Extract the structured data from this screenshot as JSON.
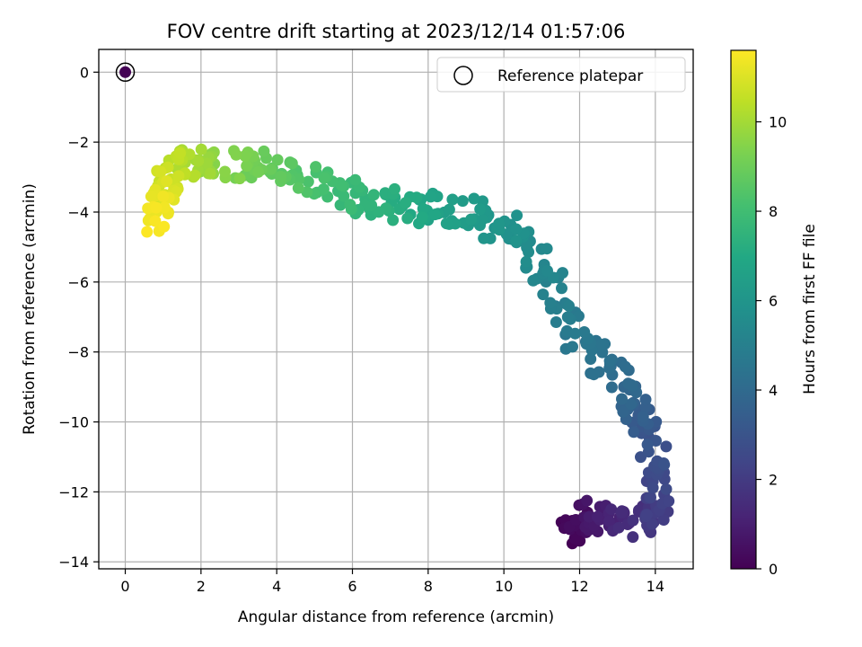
{
  "chart_data": {
    "type": "scatter",
    "title": "FOV centre drift starting at 2023/12/14 01:57:06",
    "xlabel": "Angular distance from reference (arcmin)",
    "ylabel": "Rotation from reference (arcmin)",
    "xlim": [
      -0.7,
      15.0
    ],
    "ylim": [
      -14.2,
      0.65
    ],
    "xticks": [
      0,
      2,
      4,
      6,
      8,
      10,
      12,
      14
    ],
    "yticks": [
      0,
      -2,
      -4,
      -6,
      -8,
      -10,
      -12,
      -14
    ],
    "grid": true,
    "legend": {
      "location": "upper right",
      "entries": [
        "Reference platepar"
      ]
    },
    "colorbar": {
      "label": "Hours from first FF file",
      "colormap": "viridis",
      "range": [
        0,
        11.6
      ],
      "ticks": [
        0,
        2,
        4,
        6,
        8,
        10
      ]
    },
    "reference_point": {
      "x": 0,
      "y": 0,
      "hours": 0
    },
    "path_anchors": [
      {
        "hours": 0.0,
        "x": 11.7,
        "y": -13.3
      },
      {
        "hours": 0.6,
        "x": 12.1,
        "y": -12.6
      },
      {
        "hours": 1.2,
        "x": 13.0,
        "y": -12.9
      },
      {
        "hours": 2.0,
        "x": 14.0,
        "y": -12.8
      },
      {
        "hours": 2.6,
        "x": 14.1,
        "y": -11.5
      },
      {
        "hours": 3.3,
        "x": 13.7,
        "y": -10.1
      },
      {
        "hours": 4.0,
        "x": 13.2,
        "y": -8.9
      },
      {
        "hours": 4.6,
        "x": 11.9,
        "y": -7.6
      },
      {
        "hours": 5.2,
        "x": 11.3,
        "y": -5.8
      },
      {
        "hours": 5.8,
        "x": 10.2,
        "y": -4.6
      },
      {
        "hours": 6.3,
        "x": 9.0,
        "y": -3.9
      },
      {
        "hours": 7.0,
        "x": 7.6,
        "y": -3.9
      },
      {
        "hours": 7.6,
        "x": 6.2,
        "y": -3.7
      },
      {
        "hours": 8.3,
        "x": 4.8,
        "y": -3.1
      },
      {
        "hours": 9.0,
        "x": 3.4,
        "y": -2.6
      },
      {
        "hours": 9.8,
        "x": 2.2,
        "y": -2.6
      },
      {
        "hours": 10.5,
        "x": 1.3,
        "y": -2.6
      },
      {
        "hours": 11.0,
        "x": 1.0,
        "y": -3.4
      },
      {
        "hours": 11.6,
        "x": 0.7,
        "y": -4.3
      }
    ],
    "points_per_segment": 24
  }
}
